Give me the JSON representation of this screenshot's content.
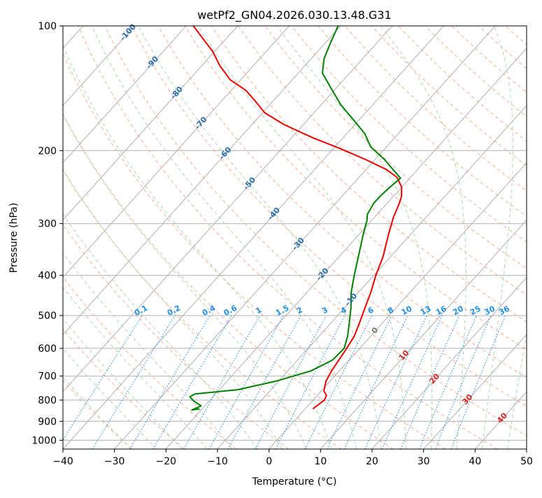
{
  "chart_data": {
    "type": "line",
    "subtype": "skew-t log-p",
    "title": "wetPf2_GN04.2026.030.13.48.G31",
    "xlabel": "Temperature (°C)",
    "ylabel": "Pressure (hPa)",
    "xlim": [
      -40,
      50
    ],
    "ylim": [
      1050,
      100
    ],
    "y_scale": "log",
    "grid": true,
    "x_ticks": [
      "−40",
      "−30",
      "−20",
      "−10",
      "0",
      "10",
      "20",
      "30",
      "40",
      "50"
    ],
    "y_ticks": [
      "100",
      "200",
      "300",
      "400",
      "500",
      "600",
      "700",
      "800",
      "900",
      "1000"
    ],
    "series": [
      {
        "role": "temperature",
        "color": "#ee0000",
        "points": [
          [
            1.5,
            840
          ],
          [
            2.2,
            800
          ],
          [
            1.8,
            780
          ],
          [
            0.5,
            760
          ],
          [
            -0.8,
            720
          ],
          [
            -1.5,
            680
          ],
          [
            -2.0,
            640
          ],
          [
            -2.5,
            600
          ],
          [
            -3.2,
            560
          ],
          [
            -4.5,
            520
          ],
          [
            -6.0,
            480
          ],
          [
            -7.6,
            440
          ],
          [
            -9.6,
            400
          ],
          [
            -11.5,
            360
          ],
          [
            -14.2,
            320
          ],
          [
            -16.3,
            290
          ],
          [
            -17.5,
            270
          ],
          [
            -18.4,
            258
          ],
          [
            -20.0,
            245
          ],
          [
            -22.6,
            232
          ],
          [
            -26.1,
            222
          ],
          [
            -31.9,
            210
          ],
          [
            -38.5,
            198
          ],
          [
            -46.0,
            186
          ],
          [
            -53.8,
            173
          ],
          [
            -59.6,
            162
          ],
          [
            -63.4,
            152
          ],
          [
            -67.2,
            143
          ],
          [
            -72.0,
            135
          ],
          [
            -76.4,
            125
          ],
          [
            -80.5,
            115
          ],
          [
            -84.7,
            107
          ],
          [
            -88.6,
            100
          ]
        ]
      },
      {
        "role": "dewpoint",
        "color": "#008000",
        "points": [
          [
            -20.5,
            840
          ],
          [
            -21.8,
            845
          ],
          [
            -20.7,
            826
          ],
          [
            -23.0,
            804
          ],
          [
            -24.5,
            785
          ],
          [
            -24.0,
            773
          ],
          [
            -16.4,
            755
          ],
          [
            -10.5,
            720
          ],
          [
            -5.5,
            680
          ],
          [
            -3.2,
            640
          ],
          [
            -3.0,
            600
          ],
          [
            -4.5,
            560
          ],
          [
            -6.5,
            520
          ],
          [
            -8.7,
            480
          ],
          [
            -11.4,
            440
          ],
          [
            -13.8,
            400
          ],
          [
            -16.3,
            360
          ],
          [
            -19.1,
            320
          ],
          [
            -20.9,
            295
          ],
          [
            -21.9,
            285
          ],
          [
            -22.6,
            268
          ],
          [
            -22.6,
            258
          ],
          [
            -22.3,
            246
          ],
          [
            -21.8,
            233
          ],
          [
            -24.8,
            222
          ],
          [
            -28.2,
            210
          ],
          [
            -33.0,
            196
          ],
          [
            -36.5,
            182
          ],
          [
            -40.6,
            170
          ],
          [
            -46.2,
            155
          ],
          [
            -51.5,
            140
          ],
          [
            -55.3,
            130
          ],
          [
            -57.5,
            120
          ],
          [
            -59.0,
            110
          ],
          [
            -60.5,
            100
          ]
        ]
      }
    ],
    "isotherm_labels": [
      "-100",
      "-90",
      "-80",
      "-70",
      "-60",
      "-50",
      "-40",
      "-30",
      "-20",
      "-10",
      "0",
      "10",
      "20",
      "30",
      "40"
    ],
    "mixing_ratio_labels": [
      "0.1",
      "0.2",
      "0.4",
      "0.6",
      "1",
      "1.5",
      "2",
      "3",
      "4",
      "6",
      "8",
      "10",
      "13",
      "16",
      "20",
      "25",
      "30",
      "36"
    ],
    "colors": {
      "isotherm_cold": "#2b6fa8",
      "isotherm_warm": "#d62728",
      "isotherm_zero": "#777777",
      "mixing_ratio": "#1f8fe8",
      "dry_adiabat": "#f5a080",
      "moist_adiabat": "#a0d0a0",
      "grid": "#b0b0b0"
    }
  }
}
